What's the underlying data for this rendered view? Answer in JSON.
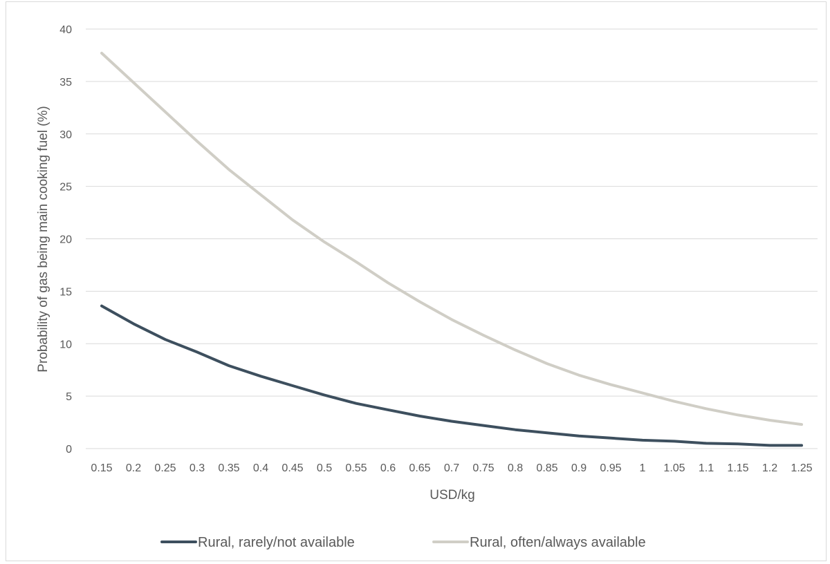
{
  "chart_data": {
    "type": "line",
    "title": "",
    "xlabel": "USD/kg",
    "ylabel": "Probability of gas being main cooking fuel (%)",
    "ylim": [
      0,
      40
    ],
    "yticks": [
      "0",
      "5",
      "10",
      "15",
      "20",
      "25",
      "30",
      "35",
      "40"
    ],
    "categories": [
      "0.15",
      "0.2",
      "0.25",
      "0.3",
      "0.35",
      "0.4",
      "0.45",
      "0.5",
      "0.55",
      "0.6",
      "0.65",
      "0.7",
      "0.75",
      "0.8",
      "0.85",
      "0.9",
      "0.95",
      "1",
      "1.05",
      "1.1",
      "1.15",
      "1.2",
      "1.25"
    ],
    "grid": true,
    "legend_position": "bottom",
    "series": [
      {
        "name": "Rural, rarely/not available",
        "color": "#3d4f5e",
        "values": [
          13.6,
          11.9,
          10.4,
          9.2,
          7.9,
          6.9,
          6.0,
          5.1,
          4.3,
          3.7,
          3.1,
          2.6,
          2.2,
          1.8,
          1.5,
          1.2,
          1.0,
          0.8,
          0.7,
          0.5,
          0.45,
          0.3,
          0.3
        ]
      },
      {
        "name": "Rural, often/always available",
        "color": "#d0cec6",
        "values": [
          37.7,
          34.9,
          32.1,
          29.3,
          26.6,
          24.2,
          21.8,
          19.7,
          17.8,
          15.8,
          14.0,
          12.3,
          10.8,
          9.4,
          8.1,
          7.0,
          6.1,
          5.3,
          4.5,
          3.8,
          3.2,
          2.7,
          2.3
        ]
      }
    ]
  }
}
